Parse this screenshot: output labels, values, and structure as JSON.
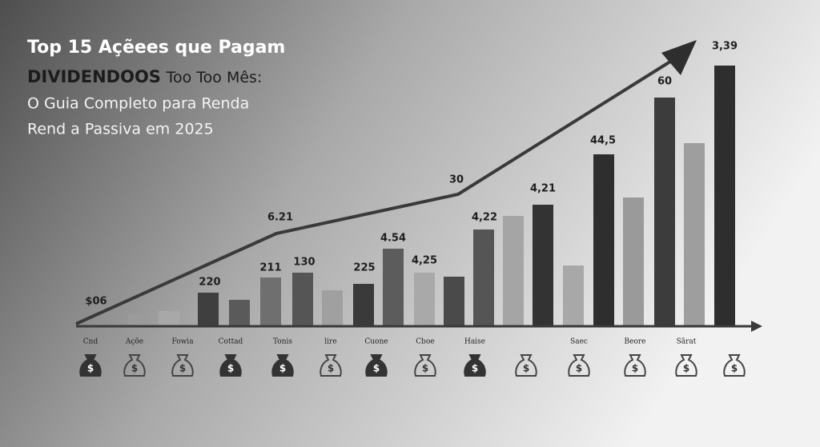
{
  "chart_data": {
    "type": "bar",
    "title": "Top 15 Açẽees que Pagam",
    "title_line2_bold": "DIVIDENDOOS",
    "title_line2_rest": "Too Too Mês:",
    "subtitle_lines": [
      "O Guia Completo para Renda",
      "Rend a Passiva em 2025"
    ],
    "categories": [
      null,
      null,
      null,
      null,
      null,
      null,
      null,
      null,
      null,
      null,
      null,
      null,
      null,
      null,
      null,
      null,
      null,
      null,
      null,
      null
    ],
    "values": [
      14,
      18,
      41,
      32,
      60,
      66,
      44,
      52,
      96,
      66,
      61,
      120,
      137,
      151,
      75,
      214,
      160,
      285,
      228,
      325
    ],
    "colors": [
      "#9b9b9b",
      "#a8a8a8",
      "#3f3f3f",
      "#5a5a5a",
      "#6f6f6f",
      "#555555",
      "#a0a0a0",
      "#3a3a3a",
      "#5c5c5c",
      "#a9a9a9",
      "#4a4a4a",
      "#555555",
      "#a5a5a5",
      "#333333",
      "#a8a8a8",
      "#2e2e2e",
      "#9a9a9a",
      "#3c3c3c",
      "#9e9e9e",
      "#2e2e2e"
    ],
    "ylim": [
      0,
      325
    ],
    "annotations": [
      "$06",
      "220",
      "211",
      "130",
      "225",
      "4.54",
      "4,25",
      "6.21",
      "30",
      "4,22",
      "4,21",
      "44,5",
      "60",
      "3,39"
    ],
    "icon_labels": [
      "Cnd",
      "Açõe",
      "Fowia",
      "Cottad",
      "Tonis",
      "lire",
      "Cuone",
      "Cboe",
      "Haise",
      null,
      "Saec",
      "Beore",
      "Sãrat",
      null
    ]
  }
}
